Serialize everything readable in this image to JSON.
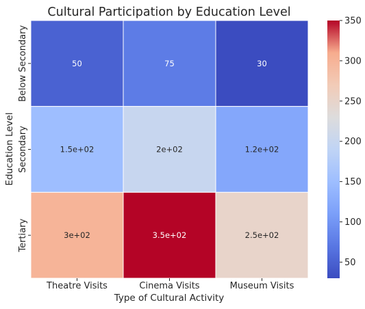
{
  "chart_data": {
    "type": "heatmap",
    "title": "Cultural Participation by Education Level",
    "xlabel": "Type of Cultural Activity",
    "ylabel": "Education Level",
    "x_categories": [
      "Theatre Visits",
      "Cinema Visits",
      "Museum Visits"
    ],
    "y_categories": [
      "Below Secondary",
      "Secondary",
      "Tertiary"
    ],
    "values": [
      [
        50,
        75,
        30
      ],
      [
        150,
        200,
        120
      ],
      [
        300,
        350,
        250
      ]
    ],
    "cell_labels": [
      [
        "50",
        "75",
        "30"
      ],
      [
        "1.5e+02",
        "2e+02",
        "1.2e+02"
      ],
      [
        "3e+02",
        "3.5e+02",
        "2.5e+02"
      ]
    ],
    "colormap": "coolwarm",
    "color_range": [
      30,
      350
    ],
    "colorbar_ticks": [
      "50",
      "100",
      "150",
      "200",
      "250",
      "300",
      "350"
    ],
    "colorbar_tick_values": [
      50,
      100,
      150,
      200,
      250,
      300,
      350
    ]
  }
}
